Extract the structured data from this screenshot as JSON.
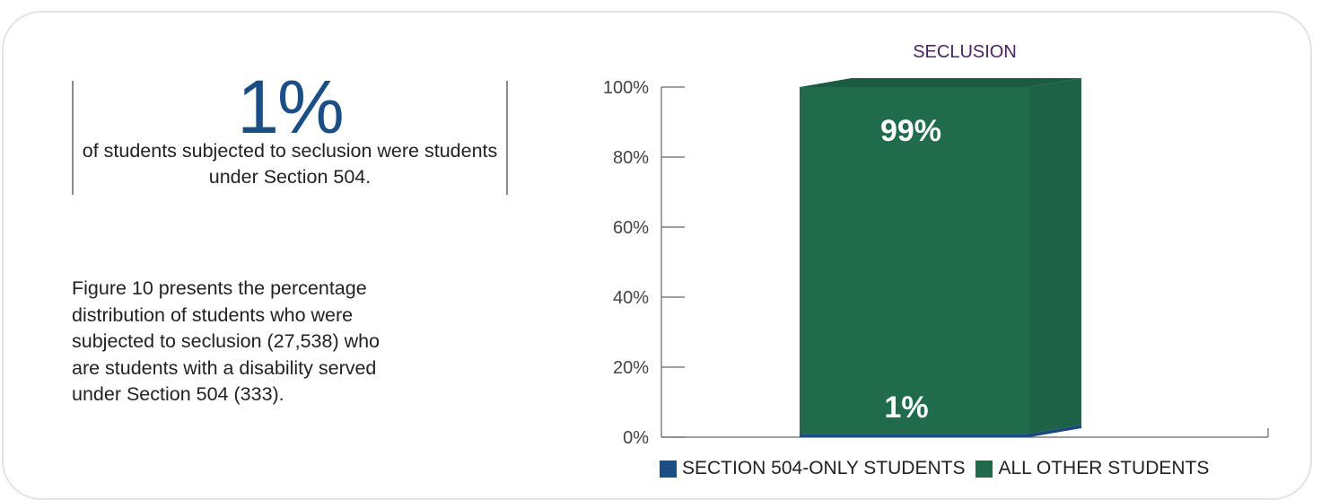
{
  "stat": {
    "value": "1%",
    "caption": "of students subjected to seclusion were students under Section 504."
  },
  "body_text": "Figure 10 presents the percentage distribution of students who were subjected to seclusion (27,538) who are students with a disability served under Section 504 (333).",
  "chart_data": {
    "type": "bar",
    "title": "SECLUSION",
    "stacked": true,
    "categories": [
      ""
    ],
    "series": [
      {
        "name": "SECTION 504-ONLY STUDENTS",
        "values": [
          1
        ],
        "label": "1%",
        "color": "#1c4e86"
      },
      {
        "name": "ALL OTHER STUDENTS",
        "values": [
          99
        ],
        "label": "99%",
        "color": "#1f6b4c"
      }
    ],
    "ylim": [
      0,
      100
    ],
    "yticks": [
      "0%",
      "20%",
      "40%",
      "60%",
      "80%",
      "100%"
    ],
    "legend_position": "bottom"
  },
  "colors": {
    "title": "#4a2460",
    "big_stat": "#1c4e86"
  }
}
